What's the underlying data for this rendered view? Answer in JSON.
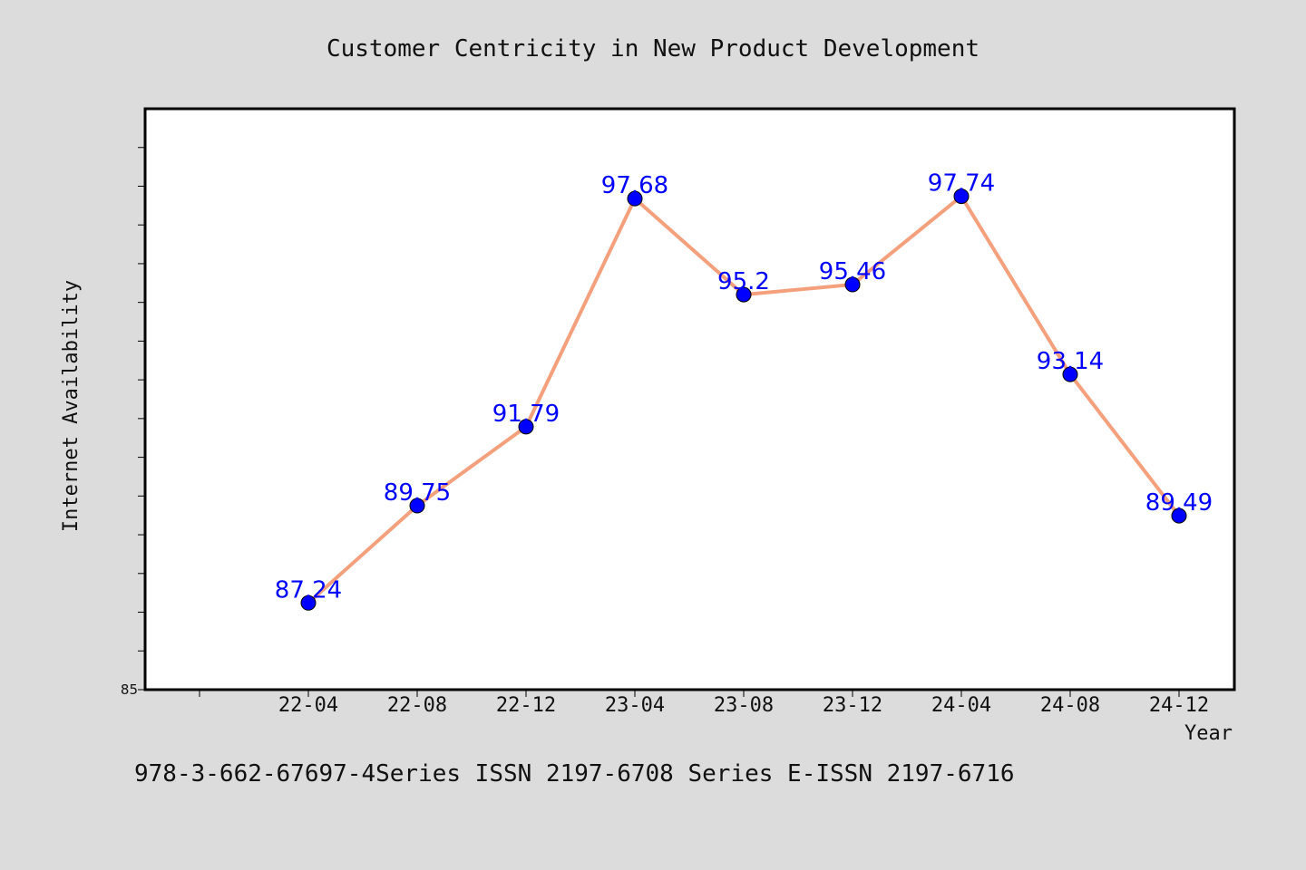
{
  "chart_data": {
    "type": "line",
    "title": "Customer Centricity in New Product Development",
    "xlabel": "Year",
    "ylabel": "Internet Availability",
    "categories": [
      "22-04",
      "22-08",
      "22-12",
      "23-04",
      "23-08",
      "23-12",
      "24-04",
      "24-08",
      "24-12"
    ],
    "series": [
      {
        "values": [
          87.24,
          89.75,
          91.79,
          97.68,
          95.2,
          95.46,
          97.74,
          93.14,
          89.49
        ]
      }
    ],
    "ylim": [
      85,
      100
    ],
    "ytick_labels": [
      "85"
    ],
    "data_labels": [
      "87.24",
      "89.75",
      "91.79",
      "97.68",
      "95.2",
      "95.46",
      "97.74",
      "93.14",
      "89.49"
    ],
    "grid": false,
    "colors": {
      "line": "#f4a07c",
      "marker": "#0000ff",
      "label": "#0000ff",
      "background": "#dcdcdc",
      "plot_bg": "#ffffff"
    }
  },
  "footer": {
    "text": "978-3-662-67697-4Series ISSN 2197-6708 Series E-ISSN 2197-6716"
  }
}
